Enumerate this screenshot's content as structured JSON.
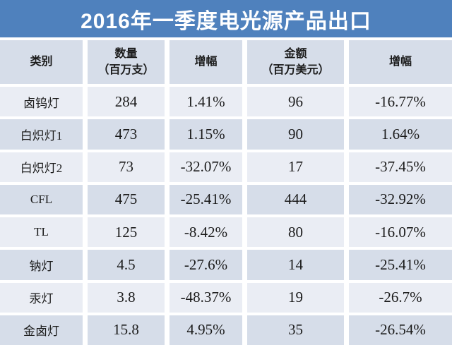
{
  "title": "2016年一季度电光源产品出口",
  "table": {
    "columns": [
      {
        "label": "类别",
        "sub": ""
      },
      {
        "label": "数量",
        "sub": "（百万支）"
      },
      {
        "label": "增幅",
        "sub": ""
      },
      {
        "label": "金额",
        "sub": "（百万美元）"
      },
      {
        "label": "增幅",
        "sub": ""
      }
    ],
    "rows": [
      {
        "category": "卤钨灯",
        "quantity": "284",
        "quantity_growth": "1.41%",
        "amount": "96",
        "amount_growth": "-16.77%"
      },
      {
        "category": "白炽灯1",
        "quantity": "473",
        "quantity_growth": "1.15%",
        "amount": "90",
        "amount_growth": "1.64%"
      },
      {
        "category": "白炽灯2",
        "quantity": "73",
        "quantity_growth": "-32.07%",
        "amount": "17",
        "amount_growth": "-37.45%"
      },
      {
        "category": "CFL",
        "quantity": "475",
        "quantity_growth": "-25.41%",
        "amount": "444",
        "amount_growth": "-32.92%"
      },
      {
        "category": "TL",
        "quantity": "125",
        "quantity_growth": "-8.42%",
        "amount": "80",
        "amount_growth": "-16.07%"
      },
      {
        "category": "钠灯",
        "quantity": "4.5",
        "quantity_growth": "-27.6%",
        "amount": "14",
        "amount_growth": "-25.41%"
      },
      {
        "category": "汞灯",
        "quantity": "3.8",
        "quantity_growth": "-48.37%",
        "amount": "19",
        "amount_growth": "-26.7%"
      },
      {
        "category": "金卤灯",
        "quantity": "15.8",
        "quantity_growth": "4.95%",
        "amount": "35",
        "amount_growth": "-26.54%"
      }
    ]
  },
  "colors": {
    "banner": "#4f81bd",
    "header_row": "#d6dde9",
    "row_light": "#eaedf4",
    "row_shaded": "#d6dde9",
    "title_text": "#ffffff",
    "body_text": "#1b1b1b",
    "grid_gap": "#ffffff"
  },
  "chart_data": {
    "type": "table",
    "title": "2016年一季度电光源产品出口",
    "columns": [
      "类别",
      "数量（百万支）",
      "增幅",
      "金额（百万美元）",
      "增幅"
    ],
    "rows": [
      [
        "卤钨灯",
        "284",
        "1.41%",
        "96",
        "-16.77%"
      ],
      [
        "白炽灯1",
        "473",
        "1.15%",
        "90",
        "1.64%"
      ],
      [
        "白炽灯2",
        "73",
        "-32.07%",
        "17",
        "-37.45%"
      ],
      [
        "CFL",
        "475",
        "-25.41%",
        "444",
        "-32.92%"
      ],
      [
        "TL",
        "125",
        "-8.42%",
        "80",
        "-16.07%"
      ],
      [
        "钠灯",
        "4.5",
        "-27.6%",
        "14",
        "-25.41%"
      ],
      [
        "汞灯",
        "3.8",
        "-48.37%",
        "19",
        "-26.7%"
      ],
      [
        "金卤灯",
        "15.8",
        "4.95%",
        "35",
        "-26.54%"
      ]
    ]
  }
}
